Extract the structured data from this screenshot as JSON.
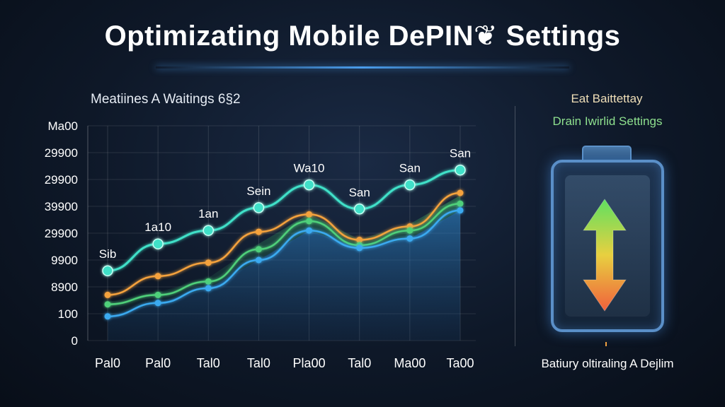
{
  "page": {
    "title": "Optimizating Mobile DePIN❦ Settings"
  },
  "chart_data": {
    "type": "line",
    "title": "Meatiines A Waitings 6§2",
    "xlabel": "",
    "ylabel": "",
    "categories": [
      "Pal0",
      "Pal0",
      "Tal0",
      "Tal0",
      "Pla00",
      "Tal0",
      "Ma00",
      "Ta00"
    ],
    "y_ticks": [
      "0",
      "100",
      "8900",
      "9900",
      "29900",
      "39900",
      "29900",
      "29900",
      "Ma00"
    ],
    "ylim": [
      0,
      8
    ],
    "series": [
      {
        "color": "#3fe0c8",
        "values": [
          2.6,
          3.6,
          4.1,
          4.95,
          5.8,
          4.9,
          5.8,
          6.35
        ]
      },
      {
        "color": "#f5a23c",
        "values": [
          1.7,
          2.4,
          2.9,
          4.05,
          4.7,
          3.75,
          4.25,
          5.5
        ]
      },
      {
        "color": "#4fd07a",
        "values": [
          1.35,
          1.7,
          2.2,
          3.4,
          4.45,
          3.55,
          4.1,
          5.1
        ]
      },
      {
        "color": "#3aaaf0",
        "values": [
          0.9,
          1.4,
          1.95,
          3.0,
          4.1,
          3.45,
          3.8,
          4.85
        ]
      }
    ],
    "point_labels": [
      {
        "series": 0,
        "index": 0,
        "text": "Sib"
      },
      {
        "series": 0,
        "index": 1,
        "text": "1a10"
      },
      {
        "series": 0,
        "index": 2,
        "text": "1an"
      },
      {
        "series": 0,
        "index": 3,
        "text": "Sein"
      },
      {
        "series": 0,
        "index": 4,
        "text": "Wa10"
      },
      {
        "series": 0,
        "index": 5,
        "text": "San"
      },
      {
        "series": 0,
        "index": 6,
        "text": "San"
      },
      {
        "series": 0,
        "index": 7,
        "text": "San"
      }
    ],
    "grid": true
  },
  "side_panel": {
    "title_line1": "Eat Baittettay",
    "title_line2": "Drain Iwirlid Settings",
    "caption": "Batiury oltiraling A Dejlim",
    "arrow_up_color": "#5fe060",
    "arrow_down_color": "#f0603c"
  }
}
